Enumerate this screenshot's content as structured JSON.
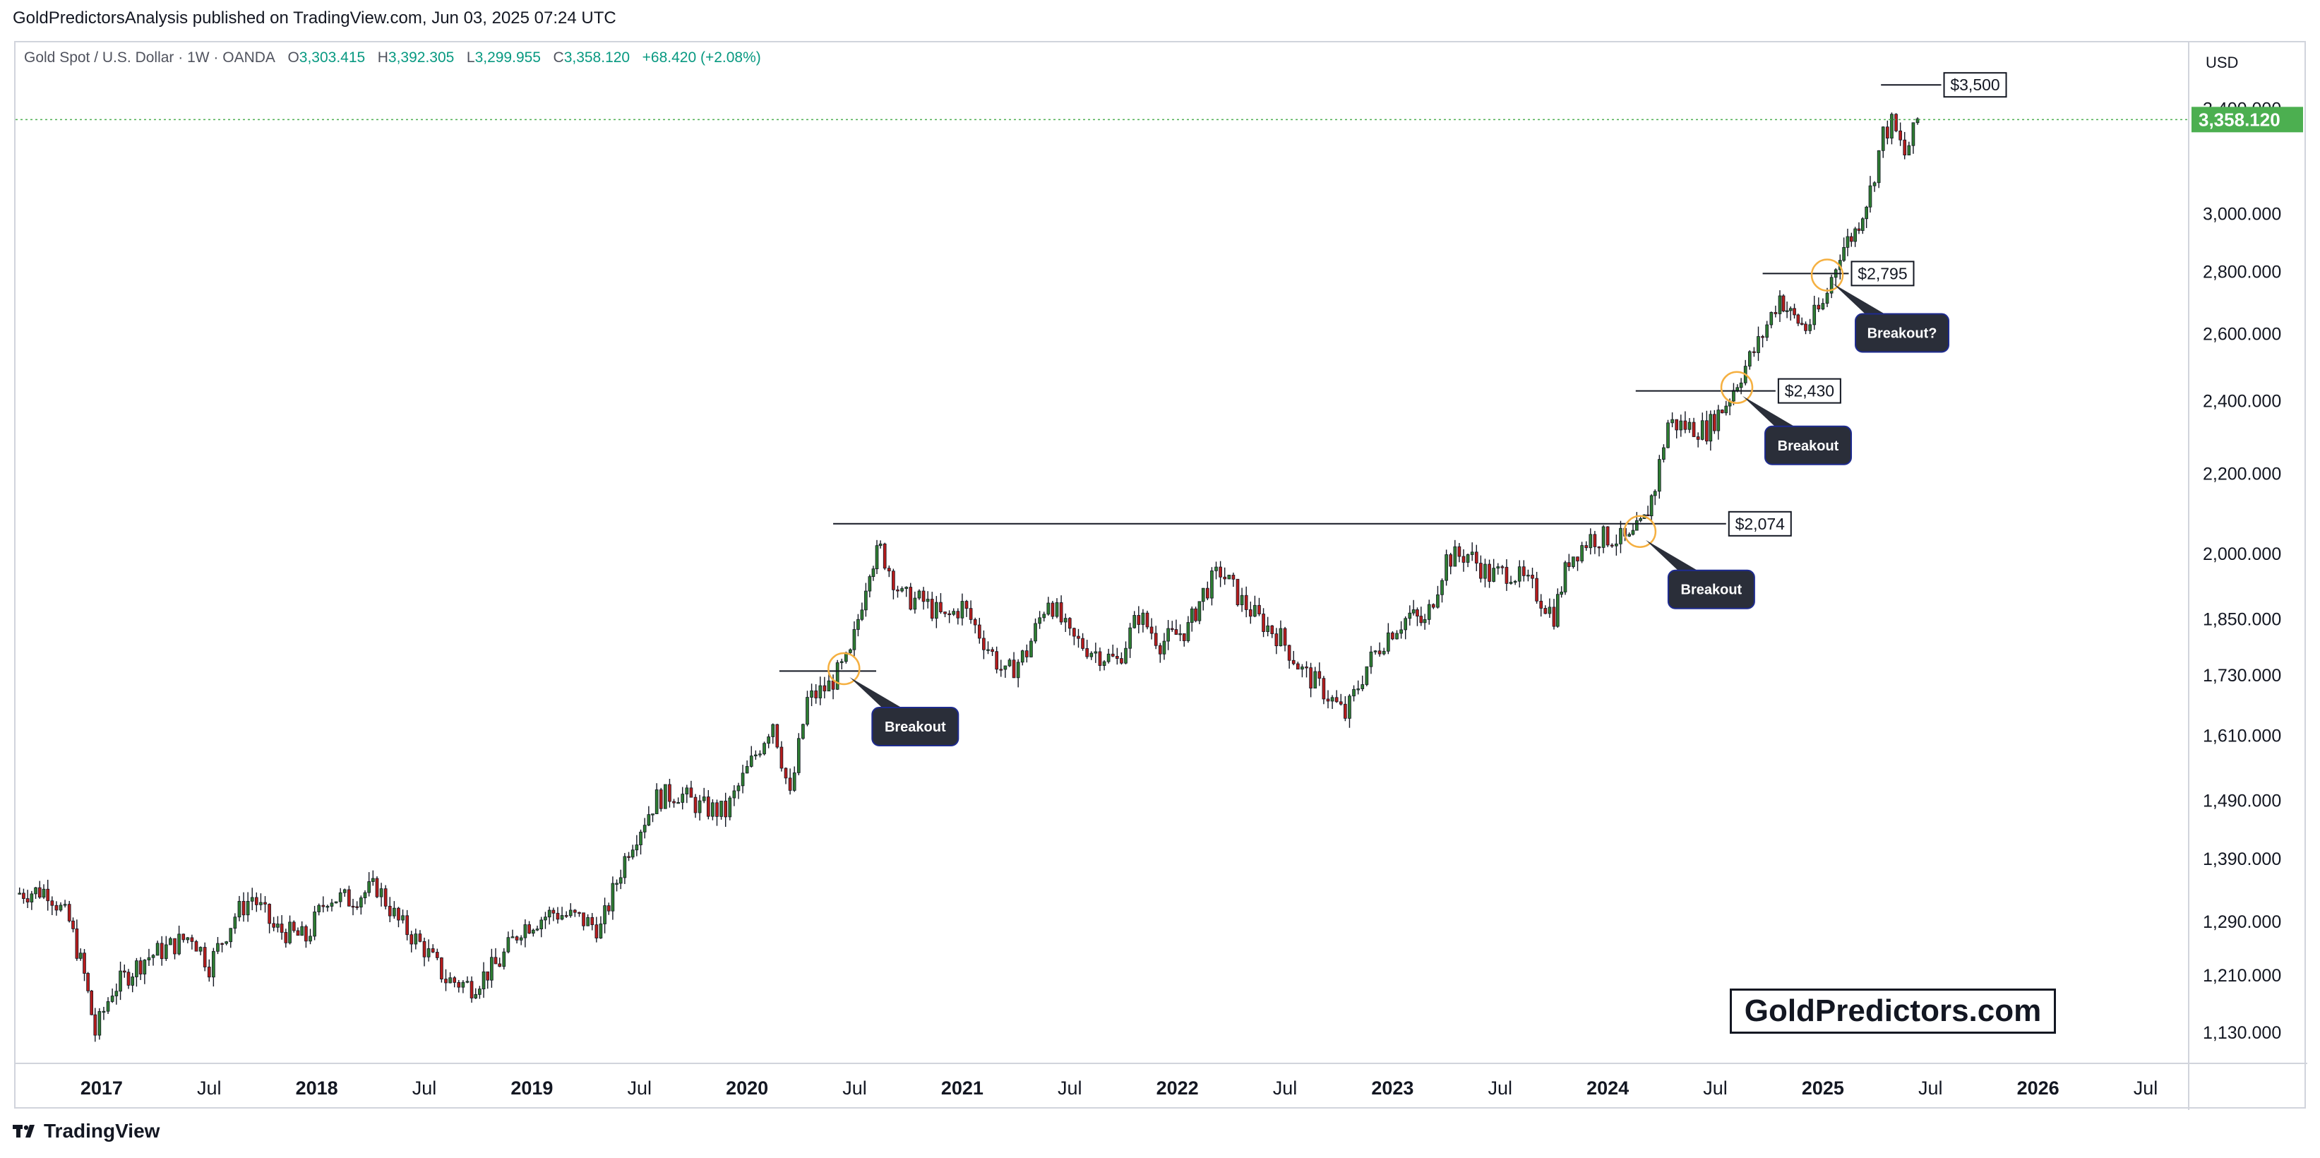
{
  "publisher_line": "GoldPredictorsAnalysis published on TradingView.com, Jun 03, 2025 07:24 UTC",
  "legend": {
    "symbol": "Gold Spot / U.S. Dollar · 1W · OANDA",
    "open_label": "O",
    "open": "3,303.415",
    "high_label": "H",
    "high": "3,392.305",
    "low_label": "L",
    "low": "3,299.955",
    "close_label": "C",
    "close": "3,358.120",
    "change": "+68.420 (+2.08%)"
  },
  "footer": {
    "brand": "TradingView"
  },
  "watermark": "GoldPredictors.com",
  "colors": {
    "up": "#089981",
    "down": "#f23645",
    "up_fill": "#2e7d32",
    "down_fill": "#b71c1c",
    "price_label": "#4caf50",
    "circle": "#f5b041",
    "callout": "#2a2e39"
  },
  "chart_data": {
    "type": "candlestick",
    "title": "",
    "currency": "USD",
    "scale": "log",
    "ylim": [
      1090,
      3560
    ],
    "xlim": [
      2016.6,
      2026.7
    ],
    "grid": false,
    "y_ticks": [
      {
        "value": 3000,
        "label": "3,000.000"
      },
      {
        "value": 2800,
        "label": "2,800.000"
      },
      {
        "value": 2600,
        "label": "2,600.000"
      },
      {
        "value": 2400,
        "label": "2,400.000"
      },
      {
        "value": 2200,
        "label": "2,200.000"
      },
      {
        "value": 2000,
        "label": "2,000.000"
      },
      {
        "value": 1850,
        "label": "1,850.000"
      },
      {
        "value": 1730,
        "label": "1,730.000"
      },
      {
        "value": 1610,
        "label": "1,610.000"
      },
      {
        "value": 1490,
        "label": "1,490.000"
      },
      {
        "value": 1390,
        "label": "1,390.000"
      },
      {
        "value": 1290,
        "label": "1,290.000"
      },
      {
        "value": 1210,
        "label": "1,210.000"
      },
      {
        "value": 1130,
        "label": "1,130.000"
      }
    ],
    "hidden_tick": {
      "value": 3400,
      "label": "3,400.000"
    },
    "x_ticks": [
      {
        "value": 2017.0,
        "label": "2017",
        "bold": true
      },
      {
        "value": 2017.5,
        "label": "Jul",
        "bold": false
      },
      {
        "value": 2018.0,
        "label": "2018",
        "bold": true
      },
      {
        "value": 2018.5,
        "label": "Jul",
        "bold": false
      },
      {
        "value": 2019.0,
        "label": "2019",
        "bold": true
      },
      {
        "value": 2019.5,
        "label": "Jul",
        "bold": false
      },
      {
        "value": 2020.0,
        "label": "2020",
        "bold": true
      },
      {
        "value": 2020.5,
        "label": "Jul",
        "bold": false
      },
      {
        "value": 2021.0,
        "label": "2021",
        "bold": true
      },
      {
        "value": 2021.5,
        "label": "Jul",
        "bold": false
      },
      {
        "value": 2022.0,
        "label": "2022",
        "bold": true
      },
      {
        "value": 2022.5,
        "label": "Jul",
        "bold": false
      },
      {
        "value": 2023.0,
        "label": "2023",
        "bold": true
      },
      {
        "value": 2023.5,
        "label": "Jul",
        "bold": false
      },
      {
        "value": 2024.0,
        "label": "2024",
        "bold": true
      },
      {
        "value": 2024.5,
        "label": "Jul",
        "bold": false
      },
      {
        "value": 2025.0,
        "label": "2025",
        "bold": true
      },
      {
        "value": 2025.5,
        "label": "Jul",
        "bold": false
      },
      {
        "value": 2026.0,
        "label": "2026",
        "bold": true
      },
      {
        "value": 2026.5,
        "label": "Jul",
        "bold": false
      }
    ],
    "current_price": {
      "value": 3358.12,
      "label": "3,358.120"
    },
    "levels": [
      {
        "price": 1740,
        "x_start": 2020.15,
        "x_end": 2020.6,
        "label": ""
      },
      {
        "price": 2074,
        "x_start": 2020.4,
        "x_end": 2024.55,
        "label": "$2,074"
      },
      {
        "price": 2430,
        "x_start": 2024.13,
        "x_end": 2024.78,
        "label": "$2,430"
      },
      {
        "price": 2795,
        "x_start": 2024.72,
        "x_end": 2025.12,
        "label": "$2,795"
      },
      {
        "price": 3500,
        "x_start": 2025.27,
        "x_end": 2025.55,
        "label": "$3,500"
      }
    ],
    "breakouts": [
      {
        "x": 2020.45,
        "price": 1745,
        "label": "Breakout"
      },
      {
        "x": 2024.15,
        "price": 2055,
        "label": "Breakout"
      },
      {
        "x": 2024.6,
        "price": 2440,
        "label": "Breakout"
      },
      {
        "x": 2025.02,
        "price": 2790,
        "label": "Breakout?"
      }
    ],
    "price_path": [
      [
        2016.6,
        1335
      ],
      [
        2016.75,
        1340
      ],
      [
        2016.85,
        1290
      ],
      [
        2016.92,
        1210
      ],
      [
        2016.97,
        1130
      ],
      [
        2017.05,
        1190
      ],
      [
        2017.2,
        1235
      ],
      [
        2017.3,
        1250
      ],
      [
        2017.42,
        1270
      ],
      [
        2017.5,
        1225
      ],
      [
        2017.62,
        1300
      ],
      [
        2017.7,
        1330
      ],
      [
        2017.8,
        1280
      ],
      [
        2017.95,
        1265
      ],
      [
        2018.05,
        1330
      ],
      [
        2018.15,
        1325
      ],
      [
        2018.28,
        1345
      ],
      [
        2018.38,
        1290
      ],
      [
        2018.5,
        1250
      ],
      [
        2018.6,
        1205
      ],
      [
        2018.72,
        1195
      ],
      [
        2018.85,
        1230
      ],
      [
        2018.95,
        1282
      ],
      [
        2019.1,
        1305
      ],
      [
        2019.22,
        1295
      ],
      [
        2019.32,
        1280
      ],
      [
        2019.45,
        1410
      ],
      [
        2019.58,
        1495
      ],
      [
        2019.68,
        1505
      ],
      [
        2019.78,
        1480
      ],
      [
        2019.9,
        1470
      ],
      [
        2020.02,
        1560
      ],
      [
        2020.12,
        1640
      ],
      [
        2020.2,
        1495
      ],
      [
        2020.28,
        1680
      ],
      [
        2020.38,
        1710
      ],
      [
        2020.48,
        1770
      ],
      [
        2020.57,
        1975
      ],
      [
        2020.62,
        2010
      ],
      [
        2020.72,
        1900
      ],
      [
        2020.82,
        1890
      ],
      [
        2020.92,
        1850
      ],
      [
        2021.0,
        1880
      ],
      [
        2021.12,
        1790
      ],
      [
        2021.2,
        1730
      ],
      [
        2021.3,
        1780
      ],
      [
        2021.4,
        1900
      ],
      [
        2021.5,
        1810
      ],
      [
        2021.62,
        1780
      ],
      [
        2021.72,
        1760
      ],
      [
        2021.82,
        1860
      ],
      [
        2021.92,
        1800
      ],
      [
        2022.05,
        1830
      ],
      [
        2022.12,
        1910
      ],
      [
        2022.2,
        1960
      ],
      [
        2022.3,
        1890
      ],
      [
        2022.38,
        1850
      ],
      [
        2022.48,
        1810
      ],
      [
        2022.58,
        1740
      ],
      [
        2022.68,
        1700
      ],
      [
        2022.78,
        1650
      ],
      [
        2022.88,
        1750
      ],
      [
        2022.98,
        1820
      ],
      [
        2023.08,
        1860
      ],
      [
        2023.15,
        1840
      ],
      [
        2023.25,
        1990
      ],
      [
        2023.35,
        2000
      ],
      [
        2023.45,
        1950
      ],
      [
        2023.55,
        1960
      ],
      [
        2023.65,
        1920
      ],
      [
        2023.75,
        1860
      ],
      [
        2023.82,
        1990
      ],
      [
        2023.92,
        2040
      ],
      [
        2024.02,
        2040
      ],
      [
        2024.1,
        2030
      ],
      [
        2024.17,
        2080
      ],
      [
        2024.22,
        2170
      ],
      [
        2024.28,
        2340
      ],
      [
        2024.36,
        2330
      ],
      [
        2024.46,
        2320
      ],
      [
        2024.55,
        2395
      ],
      [
        2024.62,
        2480
      ],
      [
        2024.7,
        2570
      ],
      [
        2024.8,
        2720
      ],
      [
        2024.85,
        2660
      ],
      [
        2024.92,
        2620
      ],
      [
        2025.0,
        2690
      ],
      [
        2025.08,
        2870
      ],
      [
        2025.15,
        2940
      ],
      [
        2025.22,
        3085
      ],
      [
        2025.28,
        3300
      ],
      [
        2025.32,
        3340
      ],
      [
        2025.38,
        3220
      ],
      [
        2025.42,
        3300
      ],
      [
        2025.44,
        3358
      ]
    ]
  }
}
